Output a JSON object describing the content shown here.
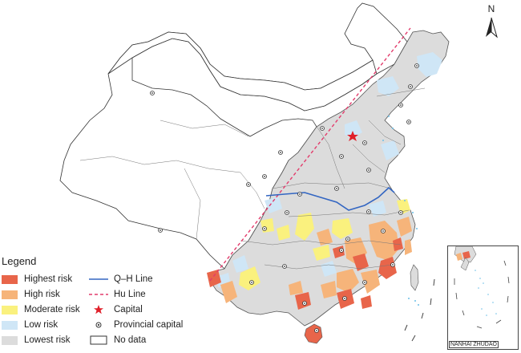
{
  "legend": {
    "title": "Legend",
    "items": [
      {
        "key": "highest",
        "label": "Highest risk",
        "color": "#e8654a",
        "kind": "swatch"
      },
      {
        "key": "high",
        "label": "High risk",
        "color": "#f6b47a",
        "kind": "swatch"
      },
      {
        "key": "moderate",
        "label": "Moderate risk",
        "color": "#faf17e",
        "kind": "swatch"
      },
      {
        "key": "low",
        "label": "Low risk",
        "color": "#cfe6f6",
        "kind": "swatch"
      },
      {
        "key": "lowest",
        "label": "Lowest risk",
        "color": "#dcdcdc",
        "kind": "swatch"
      },
      {
        "key": "qh",
        "label": "Q–H Line",
        "color": "#3366c2",
        "kind": "solid-line"
      },
      {
        "key": "hu",
        "label": "Hu Line",
        "color": "#e23b6b",
        "kind": "dashed-line"
      },
      {
        "key": "capital",
        "label": "Capital",
        "color": "#e0202a",
        "kind": "star"
      },
      {
        "key": "provcap",
        "label": "Provincial capital",
        "color": "#333333",
        "kind": "dot"
      },
      {
        "key": "nodata",
        "label": "No data",
        "color": "#ffffff",
        "kind": "outline"
      }
    ]
  },
  "north_arrow": {
    "label": "N"
  },
  "inset": {
    "label": "NANHAI ZHUDAO"
  },
  "icons": {
    "north": "north-arrow-icon",
    "capital": "star-icon",
    "province": "dot-icon"
  }
}
